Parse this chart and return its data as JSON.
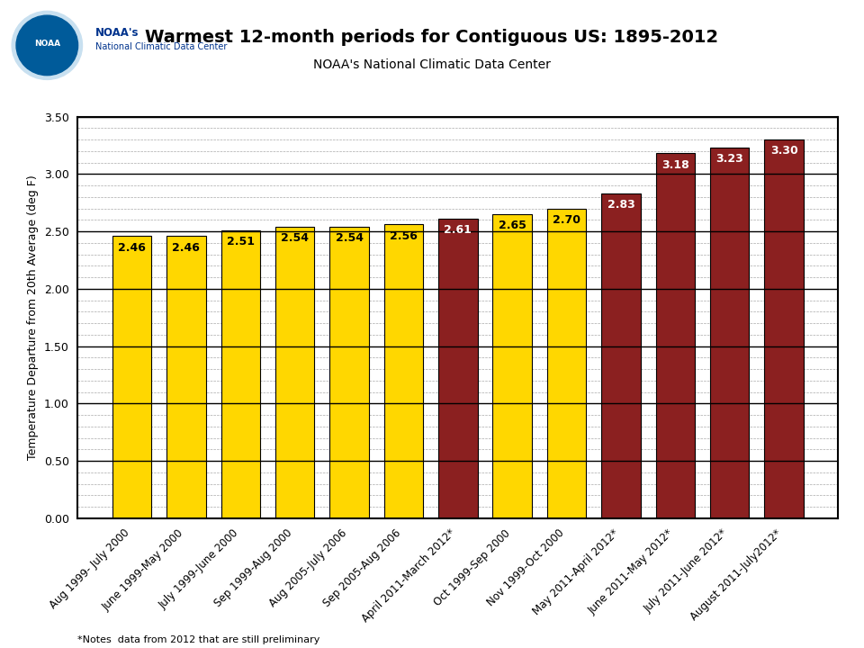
{
  "title": "Warmest 12-month periods for Contiguous US: 1895-2012",
  "subtitle": "NOAA's National Climatic Data Center",
  "ylabel": "Temperature Departure from 20th Average (deg F)",
  "footnote": "*Notes  data from 2012 that are still preliminary",
  "ylim": [
    0.0,
    3.5
  ],
  "yticks": [
    0.0,
    0.5,
    1.0,
    1.5,
    2.0,
    2.5,
    3.0,
    3.5
  ],
  "categories": [
    "Aug 1999- July 2000",
    "June 1999-May 2000",
    "July 1999-June 2000",
    "Sep 1999-Aug 2000",
    "Aug 2005-July 2006",
    "Sep 2005-Aug 2006",
    "April 2011-March 2012*",
    "Oct 1999-Sep 2000",
    "Nov 1999-Oct 2000",
    "May 2011-April 2012*",
    "June 2011-May 2012*",
    "July 2011-June 2012*",
    "August 2011-July2012*"
  ],
  "values": [
    2.46,
    2.46,
    2.51,
    2.54,
    2.54,
    2.56,
    2.61,
    2.65,
    2.7,
    2.83,
    3.18,
    3.23,
    3.3
  ],
  "colors": [
    "#FFD700",
    "#FFD700",
    "#FFD700",
    "#FFD700",
    "#FFD700",
    "#FFD700",
    "#8B2020",
    "#FFD700",
    "#FFD700",
    "#8B2020",
    "#8B2020",
    "#8B2020",
    "#8B2020"
  ],
  "label_colors": [
    "#000000",
    "#000000",
    "#000000",
    "#000000",
    "#000000",
    "#000000",
    "#FFFFFF",
    "#000000",
    "#000000",
    "#FFFFFF",
    "#FFFFFF",
    "#FFFFFF",
    "#FFFFFF"
  ],
  "background_color": "#FFFFFF",
  "grid_color": "#AAAAAA",
  "bar_edge_color": "#000000",
  "noaa_blue": "#005B9A",
  "noaa_text_color": "#00338D",
  "title_fontsize": 14,
  "subtitle_fontsize": 10,
  "ylabel_fontsize": 9,
  "tick_fontsize": 9,
  "xlabel_fontsize": 8.5,
  "label_fontsize": 9,
  "footnote_fontsize": 8
}
